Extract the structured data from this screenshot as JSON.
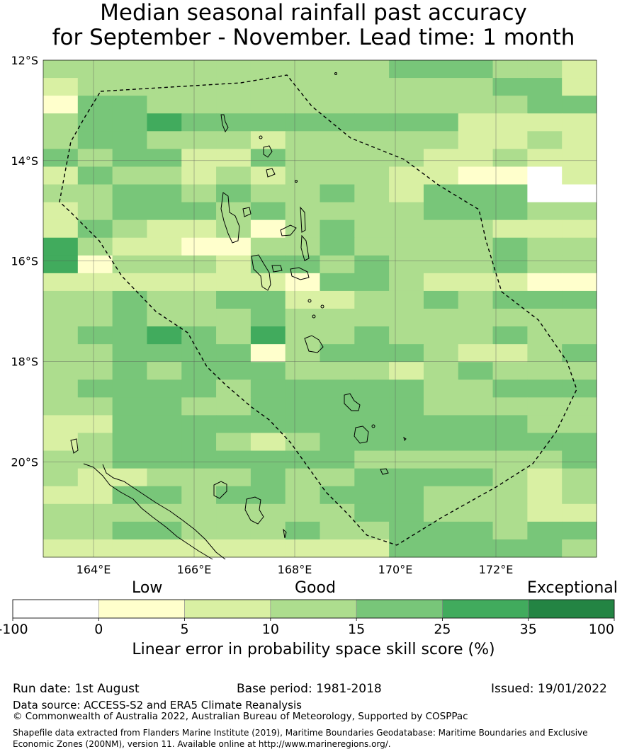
{
  "title": {
    "line1": "Median seasonal rainfall past accuracy",
    "line2": "for September - November. Lead time: 1 month"
  },
  "map": {
    "lon_range": [
      163,
      174
    ],
    "lat_range": [
      -21.9,
      -12.0
    ],
    "cell_size_deg": 0.8333,
    "lat_ticks": [
      {
        "value": -12,
        "label": "12°S"
      },
      {
        "value": -14,
        "label": "14°S"
      },
      {
        "value": -16,
        "label": "16°S"
      },
      {
        "value": -18,
        "label": "18°S"
      },
      {
        "value": -20,
        "label": "20°S"
      }
    ],
    "lon_ticks": [
      {
        "value": 164,
        "label": "164°E"
      },
      {
        "value": 166,
        "label": "166°E"
      },
      {
        "value": 168,
        "label": "168°E"
      },
      {
        "value": 170,
        "label": "170°E"
      },
      {
        "value": 172,
        "label": "172°E"
      }
    ],
    "gridlines": true,
    "eez_boundary": "dashed black line",
    "skill_grid_categories": [
      "3333333333444332",
      "2333333333333442",
      "1443333333333344",
      "3445444444442222",
      "3443332333332232",
      "4344224333322322",
      "2433232333221102",
      "3344343343244400",
      "2344434333344433",
      "2432231343333222",
      "5322113343333433",
      "5133324434333433",
      "2222222144322211",
      "3343344223343444",
      "3343334333333333",
      "3445435334333433",
      "3344441344432234",
      "3343444333234333",
      "3444434444433444",
      "3344334444433333",
      "2244444444444433",
      "2344432344444444",
      "3344444443333334",
      "3223334334444323",
      "2244344344433323",
      "3333333334433322",
      "3344333433444344",
      "2222222222444443"
    ]
  },
  "colorbar": {
    "categories": {
      "low": "Low",
      "good": "Good",
      "exceptional": "Exceptional"
    },
    "ticks": [
      "-100",
      "0",
      "5",
      "10",
      "15",
      "25",
      "35",
      "100"
    ],
    "colors": [
      "#ffffff",
      "#ffffcc",
      "#d9f0a3",
      "#addd8e",
      "#78c679",
      "#41ab5d",
      "#238443"
    ],
    "title": "Linear error in probability space skill score (%)"
  },
  "footer": {
    "run_date": "Run date: 1st August",
    "base_period": "Base period: 1981-2018",
    "issued": "Issued: 19/01/2022",
    "data_source": "Data source: ACCESS-S2 and ERA5 Climate Reanalysis",
    "copyright": "© Commonwealth of Australia 2022, Australian Bureau of Meteorology, Supported by COSPPac",
    "shapefile_line1": "Shapefile data extracted from Flanders Marine Institute (2019), Maritime Boundaries Geodatabase: Maritime Boundaries and Exclusive",
    "shapefile_line2": "Economic Zones (200NM), version 11. Available online at http://www.marineregions.org/."
  }
}
